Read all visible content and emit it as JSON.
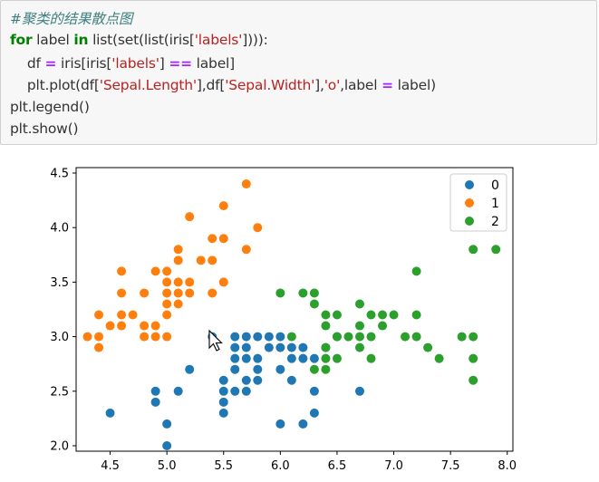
{
  "code": {
    "lines": [
      [
        {
          "t": "#聚类的结果散点图",
          "c": "cm"
        }
      ],
      [
        {
          "t": "for",
          "c": "kw"
        },
        {
          "t": " label ",
          "c": ""
        },
        {
          "t": "in",
          "c": "kw"
        },
        {
          "t": " list(set(list(iris[",
          "c": ""
        },
        {
          "t": "'labels'",
          "c": "st"
        },
        {
          "t": "]))):",
          "c": ""
        }
      ],
      [
        {
          "t": "    df ",
          "c": ""
        },
        {
          "t": "=",
          "c": "op"
        },
        {
          "t": " iris[iris[",
          "c": ""
        },
        {
          "t": "'labels'",
          "c": "st"
        },
        {
          "t": "] ",
          "c": ""
        },
        {
          "t": "==",
          "c": "op"
        },
        {
          "t": " label]",
          "c": ""
        }
      ],
      [
        {
          "t": "    plt.plot(df[",
          "c": ""
        },
        {
          "t": "'Sepal.Length'",
          "c": "st"
        },
        {
          "t": "],df[",
          "c": ""
        },
        {
          "t": "'Sepal.Width'",
          "c": "st"
        },
        {
          "t": "],",
          "c": ""
        },
        {
          "t": "'o'",
          "c": "st"
        },
        {
          "t": ",label ",
          "c": ""
        },
        {
          "t": "=",
          "c": "op"
        },
        {
          "t": " label)",
          "c": ""
        }
      ],
      [
        {
          "t": "plt.legend()",
          "c": ""
        }
      ],
      [
        {
          "t": "plt.show()",
          "c": ""
        }
      ]
    ]
  },
  "colors": {
    "series0": "#1f77b4",
    "series1": "#ff7f0e",
    "series2": "#2ca02c"
  },
  "chart_data": {
    "type": "scatter",
    "xlim": [
      4.2,
      8.05
    ],
    "ylim": [
      1.95,
      4.55
    ],
    "xticks": [
      "4.5",
      "5.0",
      "5.5",
      "6.0",
      "6.5",
      "7.0",
      "7.5",
      "8.0"
    ],
    "yticks": [
      "2.0",
      "2.5",
      "3.0",
      "3.5",
      "4.0",
      "4.5"
    ],
    "legend_position": "top-right",
    "series": [
      {
        "name": "0",
        "color": "#1f77b4",
        "points": [
          [
            4.5,
            2.3
          ],
          [
            4.9,
            2.4
          ],
          [
            4.9,
            2.5
          ],
          [
            5.0,
            2.0
          ],
          [
            5.0,
            2.2
          ],
          [
            5.1,
            2.5
          ],
          [
            5.2,
            2.7
          ],
          [
            5.4,
            3.0
          ],
          [
            5.5,
            2.3
          ],
          [
            5.5,
            2.4
          ],
          [
            5.5,
            2.5
          ],
          [
            5.5,
            2.6
          ],
          [
            5.6,
            2.5
          ],
          [
            5.6,
            2.7
          ],
          [
            5.6,
            2.8
          ],
          [
            5.6,
            2.9
          ],
          [
            5.6,
            3.0
          ],
          [
            5.7,
            2.5
          ],
          [
            5.7,
            2.6
          ],
          [
            5.7,
            2.8
          ],
          [
            5.7,
            2.9
          ],
          [
            5.7,
            3.0
          ],
          [
            5.8,
            2.6
          ],
          [
            5.8,
            2.7
          ],
          [
            5.8,
            2.8
          ],
          [
            5.8,
            3.0
          ],
          [
            5.9,
            2.9
          ],
          [
            5.9,
            3.0
          ],
          [
            6.0,
            2.2
          ],
          [
            6.0,
            2.7
          ],
          [
            6.0,
            2.9
          ],
          [
            6.0,
            3.0
          ],
          [
            6.1,
            2.6
          ],
          [
            6.1,
            2.8
          ],
          [
            6.1,
            2.9
          ],
          [
            6.2,
            2.2
          ],
          [
            6.2,
            2.8
          ],
          [
            6.2,
            2.9
          ],
          [
            6.3,
            2.3
          ],
          [
            6.3,
            2.5
          ],
          [
            6.3,
            2.8
          ],
          [
            6.4,
            2.9
          ],
          [
            6.5,
            3.0
          ],
          [
            6.7,
            2.5
          ]
        ]
      },
      {
        "name": "1",
        "color": "#ff7f0e",
        "points": [
          [
            4.3,
            3.0
          ],
          [
            4.4,
            2.9
          ],
          [
            4.4,
            3.0
          ],
          [
            4.4,
            3.2
          ],
          [
            4.5,
            3.1
          ],
          [
            4.6,
            3.1
          ],
          [
            4.6,
            3.2
          ],
          [
            4.6,
            3.4
          ],
          [
            4.6,
            3.6
          ],
          [
            4.7,
            3.2
          ],
          [
            4.8,
            3.0
          ],
          [
            4.8,
            3.1
          ],
          [
            4.8,
            3.4
          ],
          [
            4.9,
            3.0
          ],
          [
            4.9,
            3.1
          ],
          [
            4.9,
            3.6
          ],
          [
            5.0,
            3.0
          ],
          [
            5.0,
            3.2
          ],
          [
            5.0,
            3.3
          ],
          [
            5.0,
            3.4
          ],
          [
            5.0,
            3.5
          ],
          [
            5.0,
            3.6
          ],
          [
            5.1,
            3.3
          ],
          [
            5.1,
            3.4
          ],
          [
            5.1,
            3.5
          ],
          [
            5.1,
            3.7
          ],
          [
            5.1,
            3.8
          ],
          [
            5.2,
            3.4
          ],
          [
            5.2,
            3.5
          ],
          [
            5.2,
            4.1
          ],
          [
            5.3,
            3.7
          ],
          [
            5.4,
            3.4
          ],
          [
            5.4,
            3.7
          ],
          [
            5.4,
            3.9
          ],
          [
            5.5,
            3.5
          ],
          [
            5.5,
            3.9
          ],
          [
            5.5,
            4.2
          ],
          [
            5.7,
            3.8
          ],
          [
            5.7,
            4.4
          ],
          [
            5.8,
            4.0
          ]
        ]
      },
      {
        "name": "2",
        "color": "#2ca02c",
        "points": [
          [
            6.0,
            3.4
          ],
          [
            6.1,
            3.0
          ],
          [
            6.2,
            3.4
          ],
          [
            6.3,
            2.7
          ],
          [
            6.3,
            3.3
          ],
          [
            6.3,
            3.4
          ],
          [
            6.4,
            2.7
          ],
          [
            6.4,
            2.8
          ],
          [
            6.4,
            2.9
          ],
          [
            6.4,
            3.1
          ],
          [
            6.4,
            3.2
          ],
          [
            6.5,
            2.8
          ],
          [
            6.5,
            3.0
          ],
          [
            6.5,
            3.2
          ],
          [
            6.6,
            3.0
          ],
          [
            6.7,
            2.9
          ],
          [
            6.7,
            3.0
          ],
          [
            6.7,
            3.1
          ],
          [
            6.7,
            3.3
          ],
          [
            6.8,
            2.8
          ],
          [
            6.8,
            3.0
          ],
          [
            6.8,
            3.2
          ],
          [
            6.9,
            3.1
          ],
          [
            6.9,
            3.2
          ],
          [
            7.0,
            3.2
          ],
          [
            7.1,
            3.0
          ],
          [
            7.2,
            3.0
          ],
          [
            7.2,
            3.2
          ],
          [
            7.2,
            3.6
          ],
          [
            7.3,
            2.9
          ],
          [
            7.4,
            2.8
          ],
          [
            7.6,
            3.0
          ],
          [
            7.7,
            2.6
          ],
          [
            7.7,
            2.8
          ],
          [
            7.7,
            3.0
          ],
          [
            7.7,
            3.8
          ],
          [
            7.9,
            3.8
          ]
        ]
      }
    ]
  }
}
